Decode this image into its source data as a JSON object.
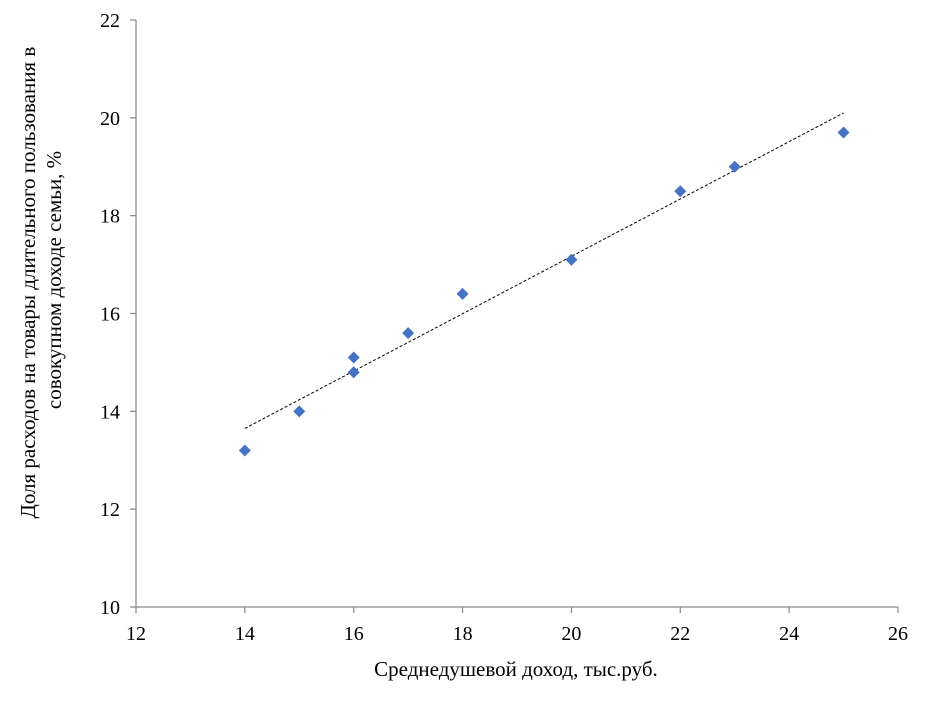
{
  "chart_data": {
    "type": "scatter",
    "title": "",
    "xlabel": "Среднедушевой доход, тыс.руб.",
    "ylabel_lines": [
      "Доля расходов на товары длительного пользования в",
      "совокупном доходе семьи, %"
    ],
    "xlim": [
      12,
      26
    ],
    "ylim": [
      10,
      22
    ],
    "x_ticks": [
      12,
      14,
      16,
      18,
      20,
      22,
      24,
      26
    ],
    "y_ticks": [
      10,
      12,
      14,
      16,
      18,
      20,
      22
    ],
    "grid": false,
    "legend": "none",
    "marker": "diamond",
    "series": [
      {
        "points": [
          {
            "x": 14,
            "y": 13.2
          },
          {
            "x": 15,
            "y": 14.0
          },
          {
            "x": 16,
            "y": 14.8
          },
          {
            "x": 16,
            "y": 15.1
          },
          {
            "x": 17,
            "y": 15.6
          },
          {
            "x": 18,
            "y": 16.4
          },
          {
            "x": 20,
            "y": 17.1
          },
          {
            "x": 22,
            "y": 18.5
          },
          {
            "x": 23,
            "y": 19.0
          },
          {
            "x": 25,
            "y": 19.7
          }
        ]
      }
    ],
    "trendline": {
      "type": "linear",
      "style": "dotted",
      "from": {
        "x": 14,
        "y": 13.65
      },
      "to": {
        "x": 25,
        "y": 20.1
      }
    },
    "colors": {
      "marker": "#4472C4",
      "axis": "#868686",
      "trendline": "#000000"
    }
  }
}
